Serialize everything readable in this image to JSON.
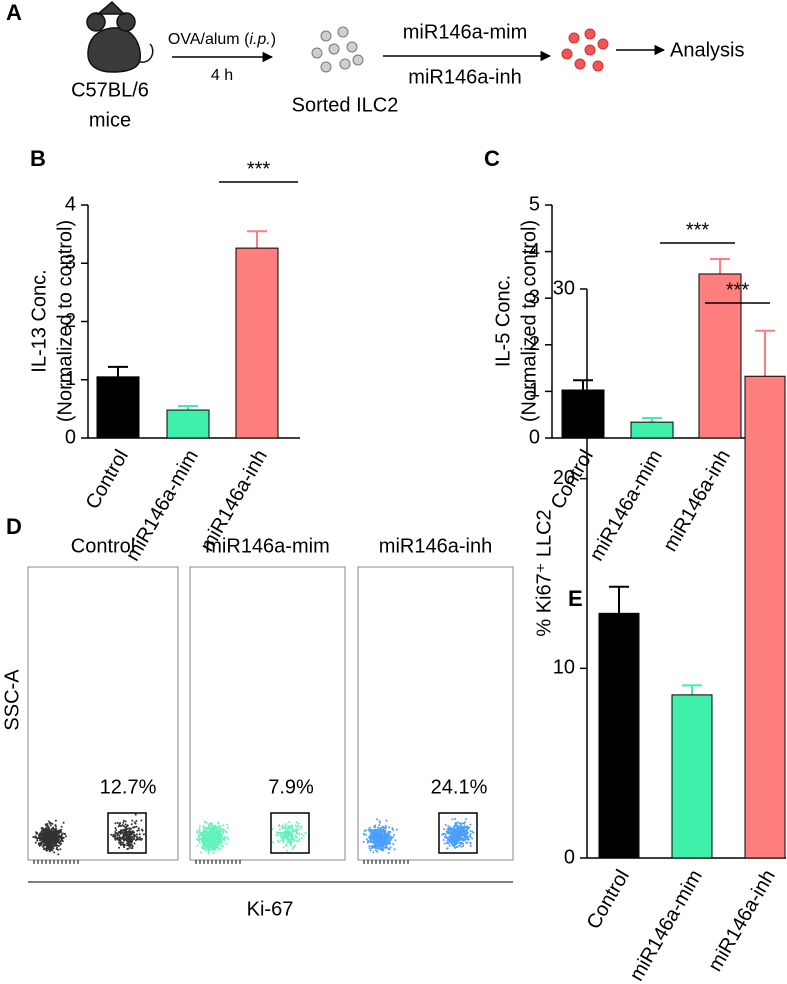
{
  "schematic": {
    "panel_label": "A",
    "strain": "C57BL/6",
    "strain_note": "mice",
    "step1": {
      "pre": "OVA/alum (",
      "italic": "i.p.",
      "post": ")"
    },
    "step1_time": "4 h",
    "cells": "Sorted ILC2",
    "treatment_1": "miR146a-mim",
    "treatment_2": "miR146a-inh",
    "readout": "Analysis"
  },
  "chart_data": [
    {
      "type": "bar",
      "panel_label": "B",
      "ylabel": [
        "IL-13 Conc.",
        "(Normalized to control)"
      ],
      "categories": [
        "Control",
        "miR146a-mim",
        "miR146a-inh"
      ],
      "values": [
        1.05,
        0.48,
        3.26
      ],
      "errors": [
        0.17,
        0.07,
        0.29
      ],
      "colors": [
        "#000000",
        "#3ef0aa",
        "#ff7f7f"
      ],
      "ylim": [
        0,
        4
      ],
      "yticks": [
        0,
        1,
        2,
        3,
        4
      ],
      "significance": "***"
    },
    {
      "type": "bar",
      "panel_label": "C",
      "ylabel": [
        "IL-5 Conc.",
        "(Normalized to control)"
      ],
      "categories": [
        "Control",
        "miR146a-mim",
        "miR146a-inh"
      ],
      "values": [
        1.03,
        0.34,
        3.52
      ],
      "errors": [
        0.21,
        0.09,
        0.32
      ],
      "colors": [
        "#000000",
        "#3ef0aa",
        "#ff7f7f"
      ],
      "ylim": [
        0,
        5
      ],
      "yticks": [
        0,
        1,
        2,
        3,
        4,
        5
      ],
      "significance": "***"
    },
    {
      "type": "bar",
      "panel_label": "E",
      "ylabel": [
        "% Ki67⁺ LLC2"
      ],
      "categories": [
        "Control",
        "miR146a-mim",
        "miR146a-inh"
      ],
      "values": [
        12.9,
        8.6,
        25.4
      ],
      "errors": [
        1.4,
        0.5,
        2.4
      ],
      "colors": [
        "#000000",
        "#3ef0aa",
        "#ff7f7f"
      ],
      "ylim": [
        0,
        30
      ],
      "yticks": [
        0,
        10,
        20,
        30
      ],
      "significance": "***"
    }
  ],
  "flow": {
    "panel_label": "D",
    "ylabel": "SSC-A",
    "xlabel": "Ki-67",
    "plots": [
      {
        "title": "Control",
        "percent": "12.7%"
      },
      {
        "title": "miR146a-mim",
        "percent": "7.9%"
      },
      {
        "title": "miR146a-inh",
        "percent": "24.1%"
      }
    ]
  }
}
